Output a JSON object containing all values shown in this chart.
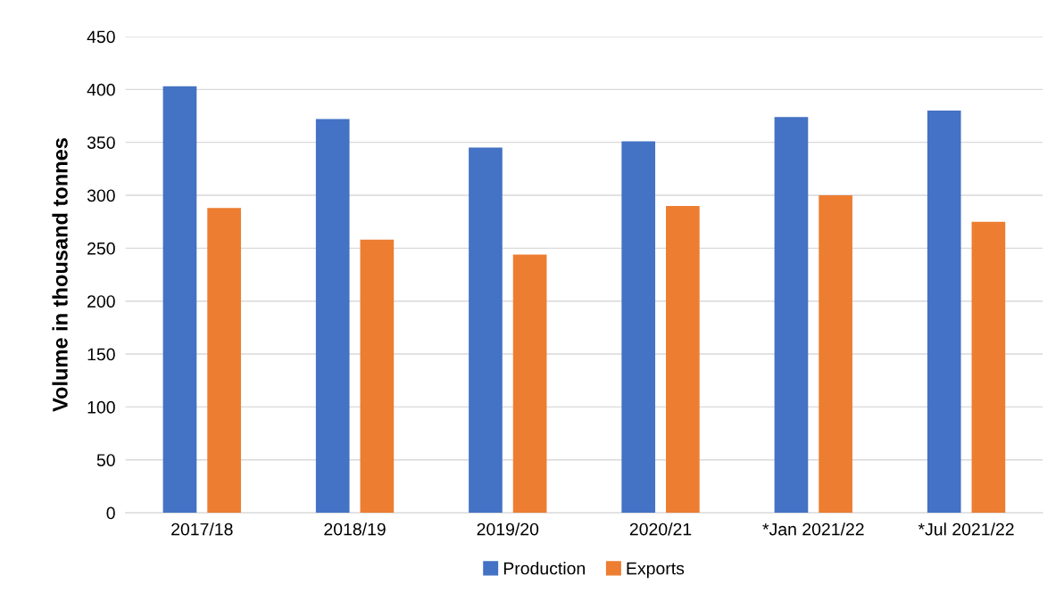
{
  "chart_data": {
    "type": "bar",
    "ylabel": "Volume in thousand tonnes",
    "categories": [
      "2017/18",
      "2018/19",
      "2019/20",
      "2020/21",
      "*Jan 2021/22",
      "*Jul 2021/22"
    ],
    "series": [
      {
        "name": "Production",
        "color": "#4472c4",
        "values": [
          403,
          372,
          345,
          351,
          374,
          380
        ]
      },
      {
        "name": "Exports",
        "color": "#ed7d31",
        "values": [
          288,
          258,
          244,
          290,
          300,
          275
        ]
      }
    ],
    "ylim": [
      0,
      450
    ],
    "yticks": [
      0,
      50,
      100,
      150,
      200,
      250,
      300,
      350,
      400,
      450
    ],
    "grid": "y",
    "legend": "bottom"
  }
}
